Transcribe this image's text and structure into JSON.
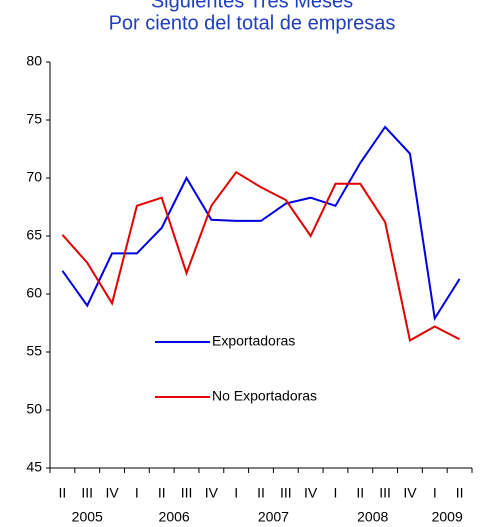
{
  "chart_data": {
    "type": "line",
    "title": "Siguientes Tres Meses",
    "subtitle": "Por ciento del total de empresas",
    "categories": [
      "II",
      "III",
      "IV",
      "I",
      "II",
      "III",
      "IV",
      "I",
      "II",
      "III",
      "IV",
      "I",
      "II",
      "III",
      "IV",
      "I",
      "II"
    ],
    "x_groups": [
      "2005",
      "2006",
      "2007",
      "2008",
      "2009"
    ],
    "series": [
      {
        "name": "Exportadoras",
        "color": "#0000e0",
        "values": [
          62,
          59,
          63.5,
          63.5,
          65.7,
          70,
          66.4,
          66.3,
          66.3,
          67.8,
          68.3,
          67.6,
          71.3,
          74.4,
          72.1,
          57.9,
          61.3
        ]
      },
      {
        "name": "No Exportadoras",
        "color": "#e00000",
        "values": [
          65.1,
          62.7,
          59.2,
          67.6,
          68.3,
          61.8,
          67.6,
          70.5,
          69.2,
          68.1,
          65.0,
          69.5,
          69.5,
          66.2,
          56.0,
          57.2,
          56.1
        ]
      }
    ],
    "ylim": [
      45,
      80
    ],
    "yticks": [
      45,
      50,
      55,
      60,
      65,
      70,
      75,
      80
    ],
    "grid": false
  }
}
